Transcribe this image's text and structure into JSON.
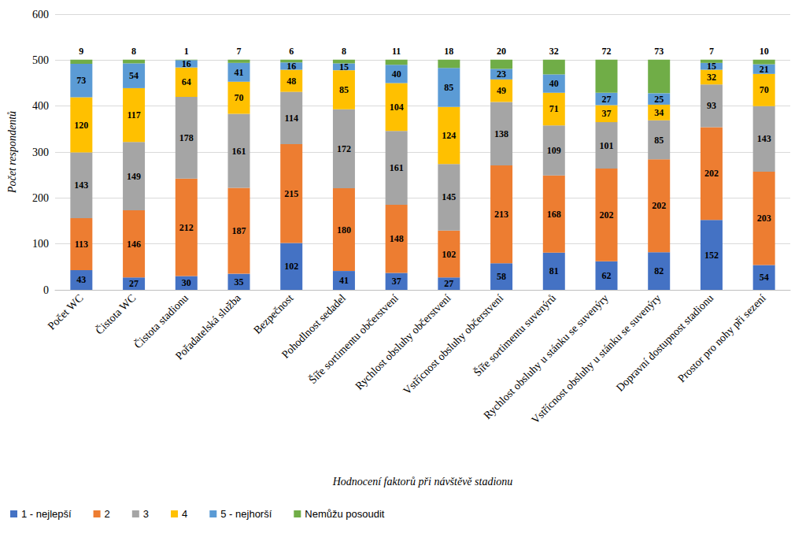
{
  "chart_data": {
    "type": "bar",
    "x_label": "Hodnocení faktorů při návštěvě stadionu",
    "y_label": "Počet respondentů",
    "categories": [
      "Počet WC",
      "Čistota WC",
      "Čistota stadionu",
      "Pořadatelská služba",
      "Bezpečnost",
      "Pohodlnost sedadel",
      "Šíře sortimentu občerstvení",
      "Rychlost obsluhy občerstvení",
      "Vstřícnost obsluhy občerstvení",
      "Šíře sortimentu suvenýrů",
      "Rychlost obsluhy u stánku se suvenýry",
      "Vstřícnost obsluhy u stánku se suvenýry",
      "Dopravní dostupnost stadionu",
      "Prostor pro nohy při sezení"
    ],
    "series": [
      {
        "name": "1 - nejlepší",
        "color": "#4472c4",
        "values": [
          43,
          27,
          30,
          35,
          102,
          41,
          37,
          27,
          58,
          81,
          62,
          82,
          152,
          54
        ]
      },
      {
        "name": "2",
        "color": "#ed7d31",
        "values": [
          113,
          146,
          212,
          187,
          215,
          180,
          148,
          102,
          213,
          168,
          202,
          202,
          202,
          203
        ]
      },
      {
        "name": "3",
        "color": "#a5a5a5",
        "values": [
          143,
          149,
          178,
          161,
          114,
          172,
          161,
          145,
          138,
          109,
          101,
          85,
          93,
          143
        ]
      },
      {
        "name": "4",
        "color": "#ffc000",
        "values": [
          120,
          117,
          64,
          70,
          48,
          85,
          104,
          124,
          49,
          71,
          37,
          34,
          32,
          70
        ]
      },
      {
        "name": "5 - nejhorší",
        "color": "#5b9bd5",
        "values": [
          73,
          54,
          16,
          41,
          16,
          15,
          40,
          85,
          23,
          40,
          27,
          25,
          15,
          21
        ]
      },
      {
        "name": "Nemůžu posoudit",
        "color": "#70ad47",
        "values": [
          9,
          8,
          1,
          7,
          6,
          8,
          11,
          18,
          20,
          32,
          72,
          73,
          7,
          10
        ]
      }
    ],
    "ylim": [
      0,
      600
    ],
    "yticks": [
      0,
      100,
      200,
      300,
      400,
      500,
      600
    ],
    "stacked": true,
    "data_labels": true,
    "grid": true,
    "legend": "bottom"
  }
}
